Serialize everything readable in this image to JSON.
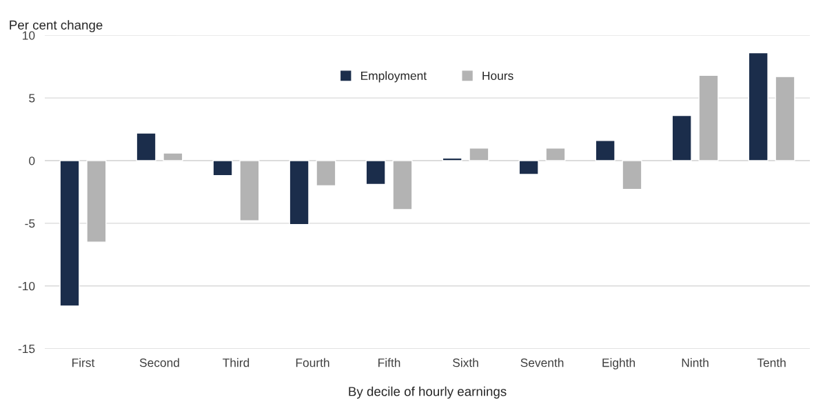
{
  "chart_data": {
    "type": "bar",
    "ylabel": "Per cent change",
    "xlabel": "By decile of hourly earnings",
    "categories": [
      "First",
      "Second",
      "Third",
      "Fourth",
      "Fifth",
      "Sixth",
      "Seventh",
      "Eighth",
      "Ninth",
      "Tenth"
    ],
    "series": [
      {
        "name": "Employment",
        "color": "#1b2d4b",
        "values": [
          -11.6,
          2.2,
          -1.2,
          -5.1,
          -1.9,
          0.2,
          -1.1,
          1.6,
          3.6,
          8.6
        ]
      },
      {
        "name": "Hours",
        "color": "#b3b3b3",
        "values": [
          -6.5,
          0.6,
          -4.8,
          -2.0,
          -3.9,
          1.0,
          1.0,
          -2.3,
          6.8,
          6.7
        ]
      }
    ],
    "ylim": [
      -15,
      10
    ],
    "yticks": [
      -15,
      -10,
      -5,
      0,
      5,
      10
    ],
    "grid": "y",
    "legend": "top"
  }
}
